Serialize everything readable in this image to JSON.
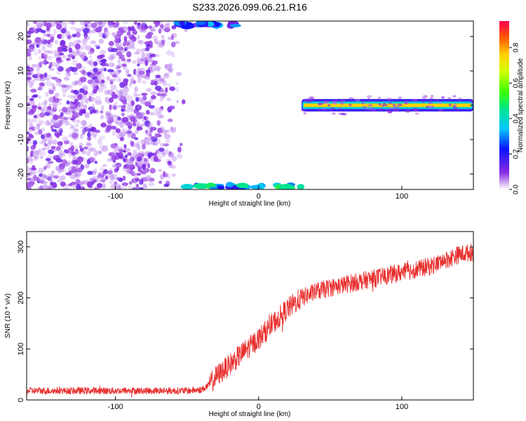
{
  "figure_title": "S233.2026.099.06.21.R16",
  "chart_data": [
    {
      "type": "heatmap",
      "xlabel": "Height of straight line (km)",
      "ylabel": "Frequency (Hz)",
      "xlim": [
        -162,
        150
      ],
      "ylim": [
        -24.5,
        24.5
      ],
      "xticks": [
        -100,
        0,
        100
      ],
      "yticks": [
        -20,
        -10,
        0,
        10,
        20
      ],
      "xtick_labels": [
        "-100",
        "0",
        "100"
      ],
      "ytick_labels": [
        "-20",
        "-10",
        "0",
        "10",
        "20"
      ],
      "colorbar": {
        "label": "Normalized spectral amplitude",
        "range": [
          0,
          0.95
        ],
        "ticks": [
          0.0,
          0.2,
          0.4,
          0.6,
          0.8
        ],
        "tick_labels": [
          "0.0",
          "0.2",
          "0.4",
          "0.6",
          "0.8"
        ]
      },
      "regions": [
        {
          "name": "noise",
          "x": [
            -162,
            -50
          ],
          "y": [
            -24.5,
            24.5
          ],
          "level": 0.1
        },
        {
          "name": "carrier",
          "x": [
            30,
            150
          ],
          "y": [
            -1,
            1
          ],
          "level": 0.8
        },
        {
          "name": "edge-bottom",
          "x": [
            -50,
            32
          ],
          "y": [
            -24.5,
            -22
          ],
          "level": 0.45
        },
        {
          "name": "edge-top",
          "x": [
            -55,
            -15
          ],
          "y": [
            22,
            24.5
          ],
          "level": 0.3
        }
      ]
    },
    {
      "type": "line",
      "xlabel": "Height of straight line (km)",
      "ylabel": "SNR (10 * v/v)",
      "xlim": [
        -162,
        150
      ],
      "ylim": [
        0,
        330
      ],
      "xticks": [
        -100,
        0,
        100
      ],
      "yticks": [
        0,
        100,
        200,
        300
      ],
      "xtick_labels": [
        "-100",
        "0",
        "100"
      ],
      "ytick_labels": [
        "0",
        "100",
        "200",
        "300"
      ],
      "color": "#e8302e",
      "series": [
        {
          "x": [
            -162,
            -140,
            -120,
            -100,
            -80,
            -60,
            -50,
            -40,
            -35,
            -30,
            -20,
            -10,
            0,
            10,
            20,
            30,
            40,
            50,
            60,
            80,
            100,
            120,
            140,
            150
          ],
          "values": [
            18,
            18,
            18,
            18,
            18,
            18,
            18,
            20,
            28,
            45,
            70,
            95,
            120,
            150,
            178,
            200,
            212,
            220,
            226,
            238,
            250,
            262,
            285,
            290
          ]
        }
      ]
    }
  ]
}
